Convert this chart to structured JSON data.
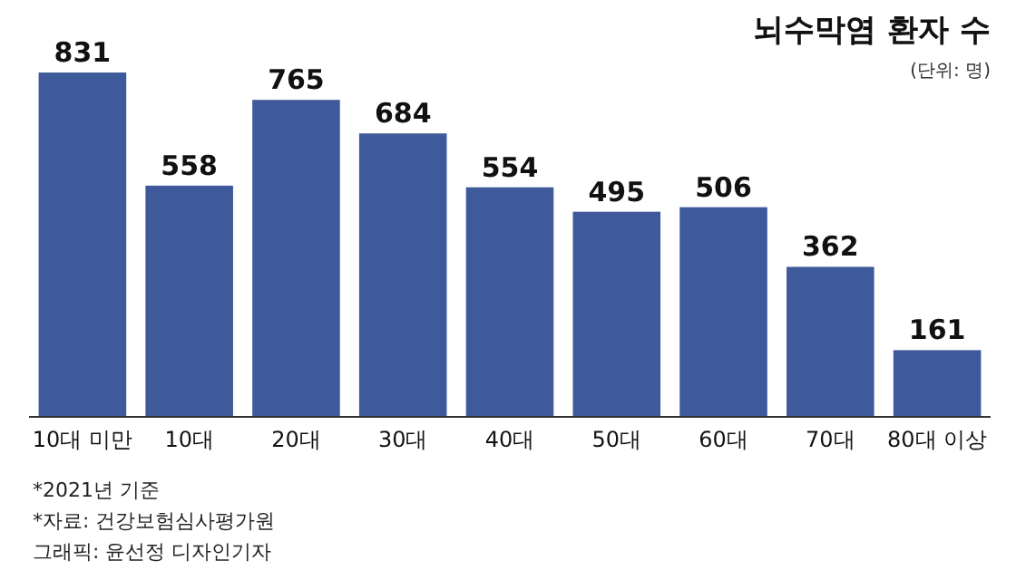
{
  "chart_data": {
    "type": "bar",
    "title": "뇌수막염 환자 수",
    "subtitle": "(단위: 명)",
    "categories": [
      "10대 미만",
      "10대",
      "20대",
      "30대",
      "40대",
      "50대",
      "60대",
      "70대",
      "80대 이상"
    ],
    "values": [
      831,
      558,
      765,
      684,
      554,
      495,
      506,
      362,
      161
    ],
    "color": "#3f5a9b",
    "data_labels": true,
    "annotations": [
      "*2021년 기준",
      "*자료: 건강보험심사평가원",
      "그래픽: 윤선정 디자인기자"
    ]
  }
}
